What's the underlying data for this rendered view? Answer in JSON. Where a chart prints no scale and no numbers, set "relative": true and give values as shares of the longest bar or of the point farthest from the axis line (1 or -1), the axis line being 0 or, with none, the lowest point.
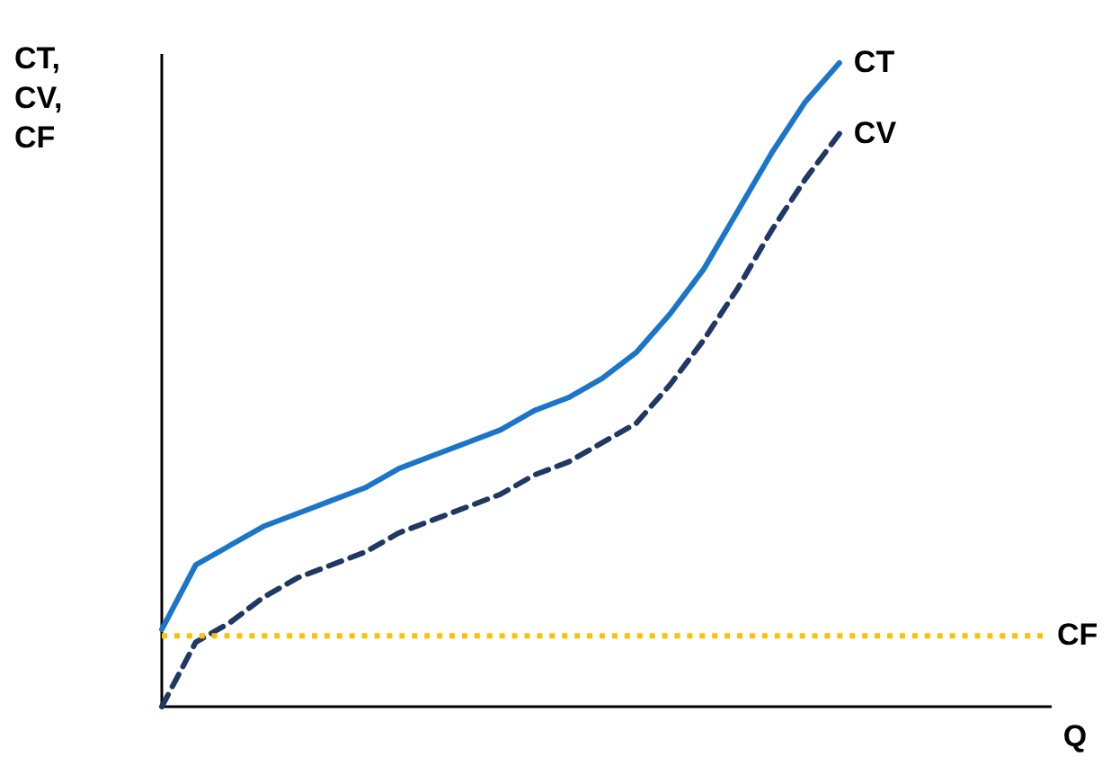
{
  "chart_data": {
    "type": "line",
    "relative": true,
    "xlabel": "Q",
    "ylabel": "CT,\nCV,\nCF",
    "categories": [
      null,
      null,
      null,
      null,
      null,
      null,
      null,
      null,
      null,
      null,
      null,
      null,
      null,
      null,
      null,
      null,
      null,
      null,
      null,
      null,
      null,
      null,
      null,
      null,
      null,
      null,
      null
    ],
    "series": [
      {
        "name": "CT",
        "color": "#1b75c8",
        "line_style": "solid",
        "values": [
          0.12,
          0.22,
          0.25,
          0.28,
          0.3,
          0.32,
          0.34,
          0.37,
          0.39,
          0.41,
          0.43,
          0.46,
          0.48,
          0.51,
          0.55,
          0.61,
          0.68,
          0.77,
          0.86,
          0.94,
          1,
          null,
          null,
          null,
          null,
          null,
          null
        ]
      },
      {
        "name": "CV",
        "color": "#1f3864",
        "line_style": "dashed",
        "values": [
          0,
          0.1,
          0.13,
          0.17,
          0.2,
          0.22,
          0.24,
          0.27,
          0.29,
          0.31,
          0.33,
          0.36,
          0.38,
          0.41,
          0.44,
          0.5,
          0.57,
          0.65,
          0.74,
          0.82,
          0.89,
          null,
          null,
          null,
          null,
          null,
          null
        ]
      },
      {
        "name": "CF",
        "color": "#ffc000",
        "line_style": "dotted",
        "values": [
          0.11,
          0.11,
          0.11,
          0.11,
          0.11,
          0.11,
          0.11,
          0.11,
          0.11,
          0.11,
          0.11,
          0.11,
          0.11,
          0.11,
          0.11,
          0.11,
          0.11,
          0.11,
          0.11,
          0.11,
          0.11,
          0.11,
          0.11,
          0.11,
          0.11,
          0.11,
          0.11
        ]
      }
    ]
  }
}
